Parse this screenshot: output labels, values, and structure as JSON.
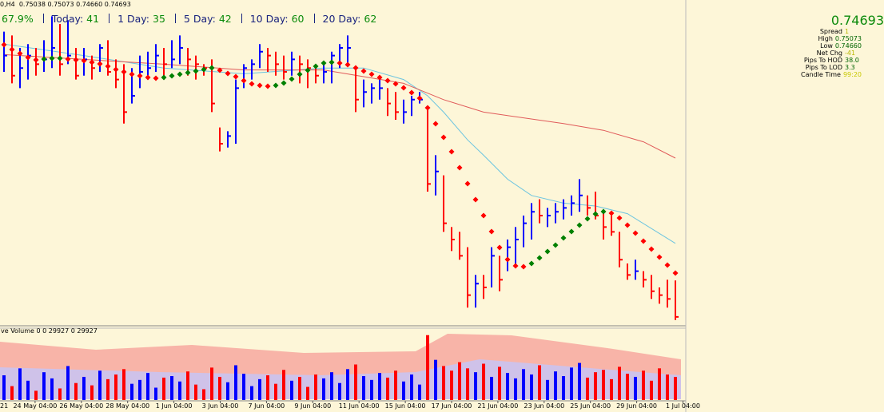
{
  "header": {
    "symbol_line": "0,H4  0.75038 0.75073 0.74660 0.74693"
  },
  "stats": {
    "lead": "67.9%",
    "items": [
      {
        "label": "Today:",
        "value": 41
      },
      {
        "label": "1 Day:",
        "value": 35
      },
      {
        "label": "5 Day:",
        "value": 42
      },
      {
        "label": "10 Day:",
        "value": 60
      },
      {
        "label": "20 Day:",
        "value": 62
      }
    ]
  },
  "info_panel": {
    "price": "0.74693",
    "rows": [
      {
        "label": "Spread",
        "value": "1"
      },
      {
        "label": "High",
        "value": "0.75073"
      },
      {
        "label": "Low",
        "value": "0.74660"
      },
      {
        "label": "Net Chg",
        "value": "-41"
      },
      {
        "label": "Pips To HOD",
        "value": "38.0"
      },
      {
        "label": "Pips To LOD",
        "value": "3.3"
      },
      {
        "label": "Candle Time",
        "value": "99:20"
      }
    ]
  },
  "chart_data": {
    "type": "hlc_bar",
    "up_color": "#0000ff",
    "down_color": "#ff0000",
    "ylim": [
      0.746,
      0.78
    ],
    "high": [
      0.7767,
      0.7763,
      0.775,
      0.7754,
      0.775,
      0.7758,
      0.7783,
      0.7775,
      0.7779,
      0.775,
      0.775,
      0.7742,
      0.7754,
      0.7758,
      0.7738,
      0.7733,
      0.7729,
      0.7742,
      0.7746,
      0.7754,
      0.775,
      0.7758,
      0.7763,
      0.775,
      0.7742,
      0.7733,
      0.7738,
      0.7667,
      0.7663,
      0.7717,
      0.7733,
      0.7738,
      0.7754,
      0.775,
      0.7746,
      0.7742,
      0.7746,
      0.7742,
      0.7738,
      0.7729,
      0.7733,
      0.7746,
      0.7754,
      0.7763,
      0.7729,
      0.7717,
      0.7713,
      0.7721,
      0.7708,
      0.7704,
      0.7696,
      0.77,
      0.7704,
      0.7688,
      0.7638,
      0.7617,
      0.7563,
      0.7558,
      0.7542,
      0.7513,
      0.7513,
      0.7542,
      0.7533,
      0.755,
      0.7563,
      0.7575,
      0.7588,
      0.7592,
      0.7583,
      0.7588,
      0.7592,
      0.7596,
      0.7613,
      0.7596,
      0.76,
      0.7579,
      0.7575,
      0.7558,
      0.7525,
      0.7529,
      0.7517,
      0.7513,
      0.75,
      0.7508,
      0.75073
    ],
    "low": [
      0.7725,
      0.7713,
      0.7708,
      0.7717,
      0.7721,
      0.7725,
      0.7729,
      0.7721,
      0.7733,
      0.7717,
      0.7721,
      0.7717,
      0.7725,
      0.7721,
      0.7708,
      0.7671,
      0.7692,
      0.7708,
      0.7717,
      0.7725,
      0.7717,
      0.7729,
      0.7733,
      0.7721,
      0.7717,
      0.7721,
      0.7683,
      0.7642,
      0.7646,
      0.765,
      0.7708,
      0.7717,
      0.7729,
      0.7725,
      0.7721,
      0.7717,
      0.7721,
      0.7713,
      0.7708,
      0.7713,
      0.7713,
      0.7713,
      0.7729,
      0.7733,
      0.7683,
      0.7688,
      0.7692,
      0.7696,
      0.7679,
      0.7675,
      0.7671,
      0.7679,
      0.7692,
      0.76,
      0.7596,
      0.7558,
      0.7538,
      0.7529,
      0.7479,
      0.7479,
      0.7488,
      0.75,
      0.7496,
      0.7517,
      0.7521,
      0.7542,
      0.755,
      0.7567,
      0.7563,
      0.7567,
      0.7571,
      0.7575,
      0.7579,
      0.7575,
      0.7571,
      0.755,
      0.7554,
      0.7521,
      0.7508,
      0.7508,
      0.75,
      0.7488,
      0.7483,
      0.7479,
      0.7466
    ],
    "close": [
      0.7742,
      0.7721,
      0.7729,
      0.7742,
      0.7733,
      0.7738,
      0.775,
      0.7733,
      0.7742,
      0.7721,
      0.7738,
      0.7729,
      0.775,
      0.7725,
      0.7717,
      0.7683,
      0.77,
      0.7725,
      0.7729,
      0.7742,
      0.7733,
      0.7738,
      0.775,
      0.7738,
      0.7733,
      0.7729,
      0.7692,
      0.765,
      0.7658,
      0.7708,
      0.7729,
      0.7733,
      0.7746,
      0.7742,
      0.7733,
      0.7725,
      0.7738,
      0.7733,
      0.7729,
      0.7721,
      0.7725,
      0.7742,
      0.775,
      0.775,
      0.7696,
      0.7704,
      0.7708,
      0.7708,
      0.7692,
      0.7683,
      0.7683,
      0.7696,
      0.7696,
      0.7608,
      0.7621,
      0.7567,
      0.755,
      0.7533,
      0.7492,
      0.7504,
      0.75,
      0.7533,
      0.7508,
      0.7542,
      0.755,
      0.7567,
      0.7579,
      0.7575,
      0.7575,
      0.7579,
      0.7583,
      0.7588,
      0.7596,
      0.7583,
      0.7575,
      0.7563,
      0.7558,
      0.7529,
      0.7513,
      0.7517,
      0.7508,
      0.7496,
      0.7492,
      0.7488,
      0.74693
    ],
    "ma_lines": [
      {
        "color": "#6cc4e0",
        "x": [
          0,
          10,
          20,
          30,
          40,
          45,
          50,
          53,
          55,
          58,
          60,
          63,
          66,
          70,
          74,
          78,
          84
        ],
        "values": [
          0.7754,
          0.7742,
          0.7729,
          0.7723,
          0.7729,
          0.7729,
          0.7717,
          0.77,
          0.7683,
          0.7654,
          0.7638,
          0.7613,
          0.7596,
          0.7588,
          0.7585,
          0.7577,
          0.7546
        ]
      },
      {
        "color": "#e05a5a",
        "x": [
          0,
          20,
          30,
          40,
          50,
          55,
          60,
          70,
          75,
          80,
          84
        ],
        "values": [
          0.7743,
          0.7733,
          0.7727,
          0.7727,
          0.7713,
          0.7696,
          0.7683,
          0.7671,
          0.7664,
          0.7652,
          0.7635
        ]
      }
    ],
    "dots": {
      "rise_color": "#008000",
      "fall_color": "#ff0000",
      "values": [
        0.77533,
        0.77483,
        0.77442,
        0.774,
        0.77375,
        0.77383,
        0.77392,
        0.77392,
        0.77383,
        0.77375,
        0.77367,
        0.7735,
        0.77333,
        0.77308,
        0.77275,
        0.7725,
        0.77225,
        0.77208,
        0.77192,
        0.77183,
        0.77192,
        0.77208,
        0.77225,
        0.77242,
        0.77258,
        0.77275,
        0.77292,
        0.77267,
        0.77233,
        0.772,
        0.77158,
        0.77125,
        0.77108,
        0.771,
        0.77108,
        0.77133,
        0.77175,
        0.77225,
        0.77267,
        0.77308,
        0.77342,
        0.7735,
        0.77342,
        0.77325,
        0.77292,
        0.77258,
        0.77225,
        0.77192,
        0.77158,
        0.77125,
        0.77083,
        0.77033,
        0.76975,
        0.76875,
        0.76708,
        0.76567,
        0.76417,
        0.7625,
        0.76083,
        0.75917,
        0.7575,
        0.75583,
        0.75417,
        0.75292,
        0.75225,
        0.75217,
        0.7525,
        0.75308,
        0.75375,
        0.75442,
        0.75517,
        0.75583,
        0.7565,
        0.75717,
        0.75767,
        0.75792,
        0.75775,
        0.75725,
        0.7565,
        0.75567,
        0.75483,
        0.754,
        0.75317,
        0.75233,
        0.7515
      ]
    },
    "volume": {
      "label": "ve Volume 0 0 29927 0 29927",
      "ylim": [
        0,
        92000
      ],
      "values": [
        32000,
        18000,
        41000,
        25000,
        12000,
        36000,
        28000,
        15000,
        44000,
        22000,
        30000,
        19000,
        38000,
        27000,
        33000,
        40000,
        21000,
        26000,
        35000,
        16000,
        29000,
        31000,
        24000,
        37000,
        20000,
        14000,
        42000,
        30000,
        23000,
        45000,
        34000,
        18000,
        27000,
        32000,
        21000,
        39000,
        25000,
        30000,
        17000,
        33000,
        28000,
        36000,
        22000,
        40000,
        46000,
        31000,
        26000,
        35000,
        29000,
        38000,
        24000,
        33000,
        20000,
        84000,
        52000,
        44000,
        38000,
        49000,
        41000,
        36000,
        47000,
        30000,
        43000,
        35000,
        28000,
        40000,
        33000,
        45000,
        26000,
        37000,
        31000,
        42000,
        48000,
        29000,
        36000,
        39000,
        27000,
        43000,
        34000,
        30000,
        38000,
        25000,
        41000,
        33000,
        29927
      ]
    },
    "xtick_labels": [
      "21",
      "24 May 04:00",
      "26 May 04:00",
      "28 May 04:00",
      "1 Jun 04:00",
      "3 Jun 04:00",
      "7 Jun 04:00",
      "9 Jun 04:00",
      "11 Jun 04:00",
      "15 Jun 04:00",
      "17 Jun 04:00",
      "21 Jun 04:00",
      "23 Jun 04:00",
      "25 Jun 04:00",
      "29 Jun 04:00",
      "1 Jul 04:00"
    ]
  }
}
